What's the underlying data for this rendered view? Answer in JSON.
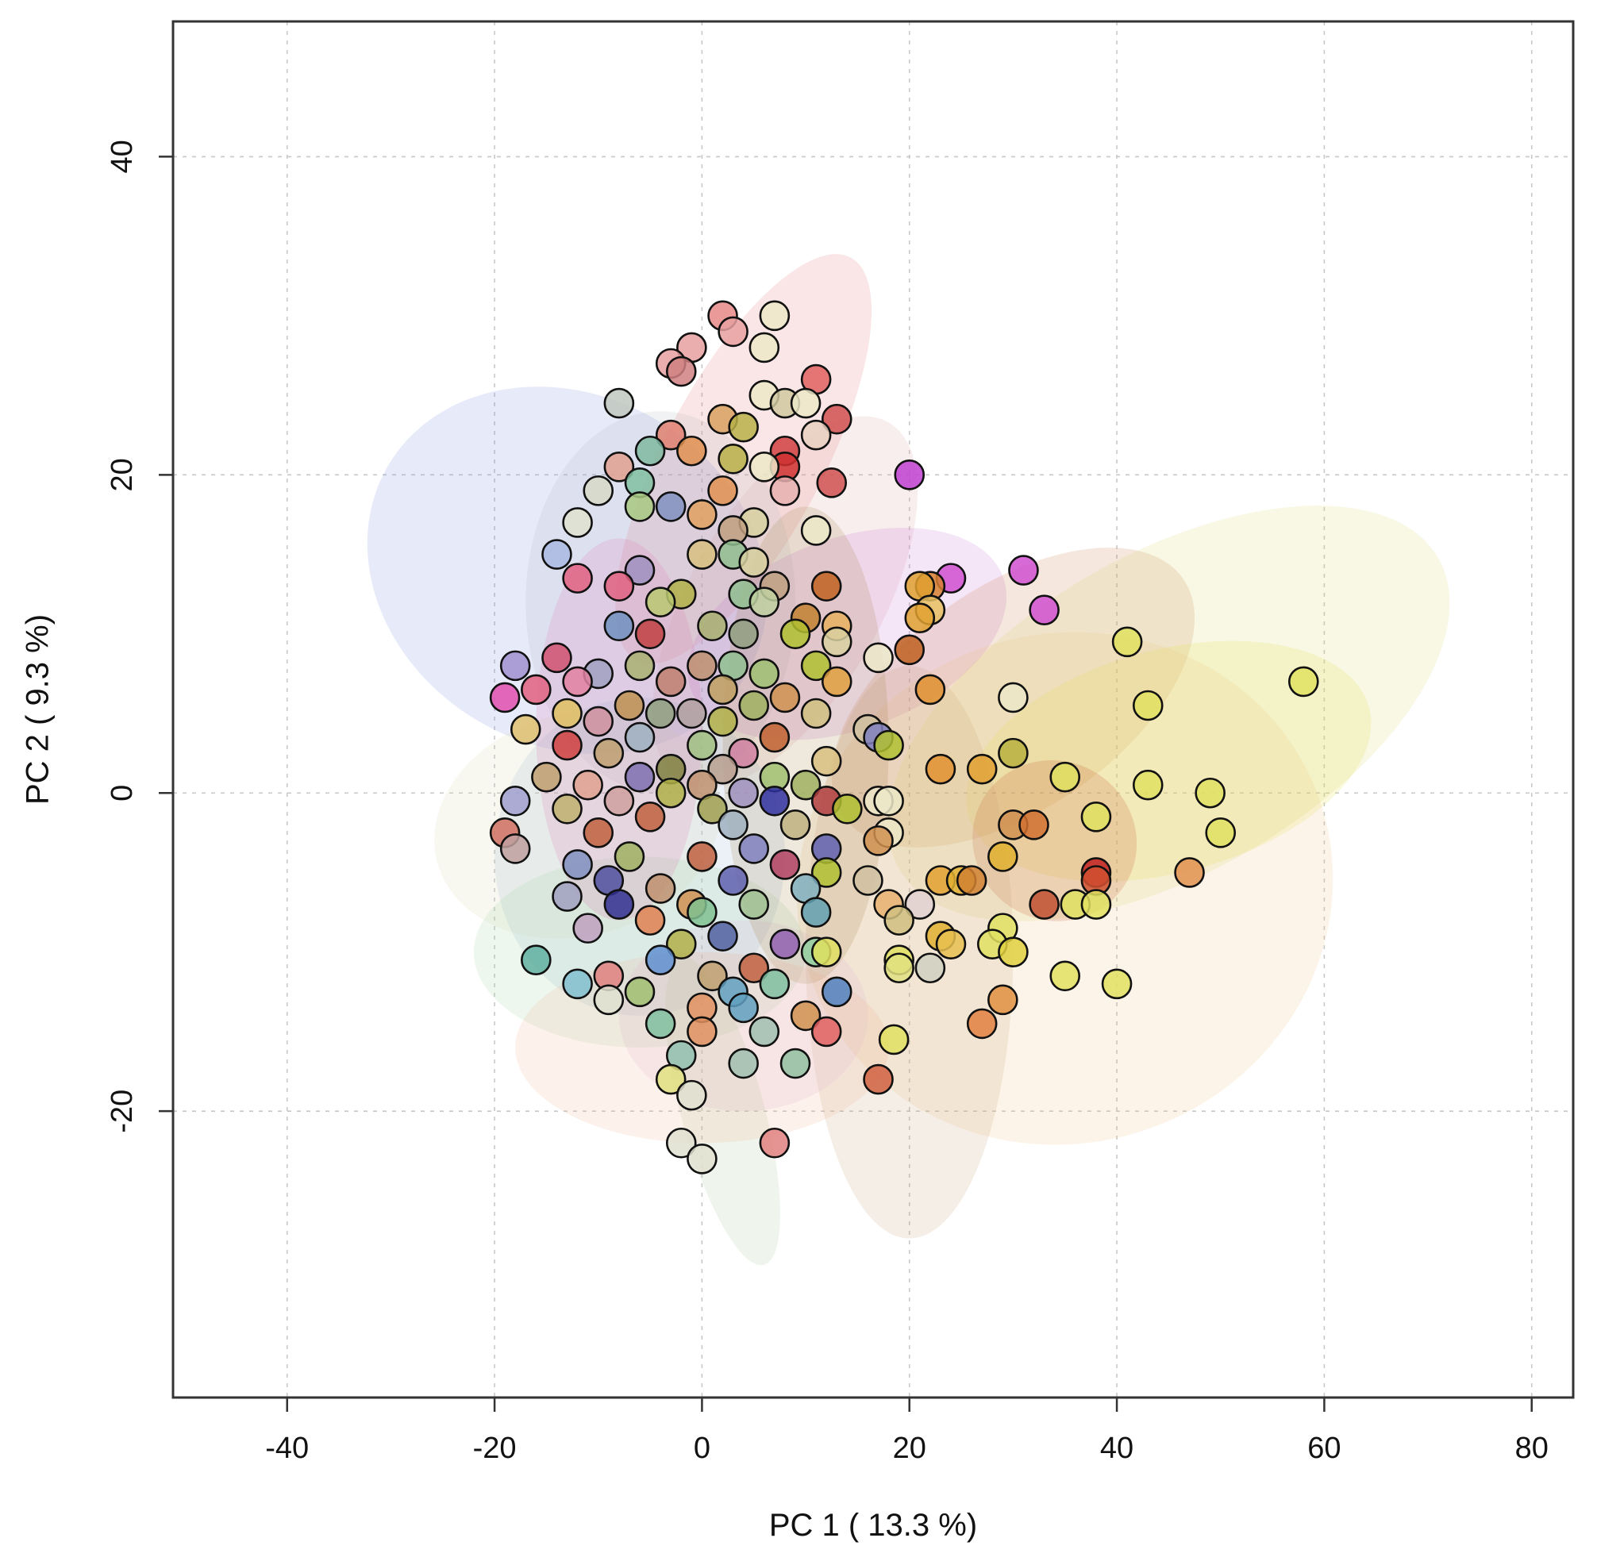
{
  "chart_data": {
    "type": "scatter",
    "title": "",
    "xlabel": "PC 1 ( 13.3 %)",
    "ylabel": "PC 2 ( 9.3 %)",
    "xlim": [
      -51,
      84
    ],
    "ylim": [
      -38,
      48.5
    ],
    "grid": true,
    "xticks": [
      -40,
      -20,
      0,
      20,
      40,
      60,
      80
    ],
    "xtick_labels": [
      "-40",
      "-20",
      "0",
      "20",
      "40",
      "60",
      "80"
    ],
    "yticks": [
      -20,
      0,
      20,
      40
    ],
    "ytick_labels": [
      "-20",
      "0",
      "20",
      "40"
    ],
    "ellipses": [
      {
        "cx": -13,
        "cy": 14,
        "rx": 20,
        "ry": 11,
        "angle": -30,
        "color": "#7b8fe0"
      },
      {
        "cx": 4,
        "cy": 21,
        "rx": 22,
        "ry": 5,
        "angle": 62,
        "color": "#e57373"
      },
      {
        "cx": 8,
        "cy": 12,
        "rx": 20,
        "ry": 6,
        "angle": 60,
        "color": "#e0a0a0"
      },
      {
        "cx": -4,
        "cy": 12,
        "rx": 13,
        "ry": 12,
        "angle": 0,
        "color": "#b0b8c0"
      },
      {
        "cx": 14,
        "cy": 10,
        "rx": 16,
        "ry": 6,
        "angle": 20,
        "color": "#c070d0"
      },
      {
        "cx": 30,
        "cy": 6,
        "rx": 20,
        "ry": 7,
        "angle": 35,
        "color": "#c87840"
      },
      {
        "cx": 45,
        "cy": 5,
        "rx": 30,
        "ry": 10,
        "angle": 30,
        "color": "#d8d870"
      },
      {
        "cx": 45,
        "cy": 2,
        "rx": 20,
        "ry": 7,
        "angle": 15,
        "color": "#e6e040"
      },
      {
        "cx": 35,
        "cy": -6,
        "rx": 26,
        "ry": 16,
        "angle": 20,
        "color": "#eec080"
      },
      {
        "cx": 34,
        "cy": -3,
        "rx": 8,
        "ry": 5,
        "angle": -30,
        "color": "#c05020"
      },
      {
        "cx": 20,
        "cy": -10,
        "rx": 10,
        "ry": 18,
        "angle": 0,
        "color": "#c8a078"
      },
      {
        "cx": -6,
        "cy": -4,
        "rx": 14,
        "ry": 10,
        "angle": 0,
        "color": "#8fb0d0"
      },
      {
        "cx": -12,
        "cy": -2,
        "rx": 14,
        "ry": 7,
        "angle": 15,
        "color": "#d8d8b0"
      },
      {
        "cx": -6,
        "cy": -10,
        "rx": 16,
        "ry": 6,
        "angle": 0,
        "color": "#a0d0a0"
      },
      {
        "cx": 4,
        "cy": -14,
        "rx": 12,
        "ry": 6,
        "angle": 0,
        "color": "#e0b0d8"
      },
      {
        "cx": 2,
        "cy": -20,
        "rx": 4,
        "ry": 10,
        "angle": 15,
        "color": "#a8c098"
      },
      {
        "cx": -8,
        "cy": 4,
        "rx": 8,
        "ry": 12,
        "angle": 0,
        "color": "#e070b0"
      },
      {
        "cx": 10,
        "cy": 3,
        "rx": 8,
        "ry": 15,
        "angle": 0,
        "color": "#a08040"
      },
      {
        "cx": 0,
        "cy": -16,
        "rx": 18,
        "ry": 6,
        "angle": 0,
        "color": "#f0b090"
      }
    ],
    "points": [
      {
        "x": 2,
        "y": 30,
        "c": "#e88888"
      },
      {
        "x": 7,
        "y": 30,
        "c": "#ece8c8"
      },
      {
        "x": 3,
        "y": 29,
        "c": "#e8a0a0"
      },
      {
        "x": -1,
        "y": 28,
        "c": "#e8a0a0"
      },
      {
        "x": -3,
        "y": 27,
        "c": "#e8a0a0"
      },
      {
        "x": 6,
        "y": 28,
        "c": "#ece8c8"
      },
      {
        "x": -2,
        "y": 26.5,
        "c": "#d08080"
      },
      {
        "x": 11,
        "y": 26,
        "c": "#e06060"
      },
      {
        "x": 6,
        "y": 25,
        "c": "#ece8c8"
      },
      {
        "x": -8,
        "y": 24.5,
        "c": "#c0c8c0"
      },
      {
        "x": 8,
        "y": 24.5,
        "c": "#d0c8a0"
      },
      {
        "x": 10,
        "y": 24.5,
        "c": "#ece8c8"
      },
      {
        "x": 13,
        "y": 23.5,
        "c": "#d05050"
      },
      {
        "x": 2,
        "y": 23.5,
        "c": "#d8a060"
      },
      {
        "x": 4,
        "y": 23,
        "c": "#b8b048"
      },
      {
        "x": 11,
        "y": 22.5,
        "c": "#e8d0c0"
      },
      {
        "x": -3,
        "y": 22.5,
        "c": "#e08070"
      },
      {
        "x": -5,
        "y": 21.5,
        "c": "#80b8a0"
      },
      {
        "x": -1,
        "y": 21.5,
        "c": "#e09050"
      },
      {
        "x": 8,
        "y": 21.5,
        "c": "#d04040"
      },
      {
        "x": 3,
        "y": 21,
        "c": "#b8b048"
      },
      {
        "x": 8,
        "y": 20.5,
        "c": "#d03030"
      },
      {
        "x": -8,
        "y": 20.5,
        "c": "#e0a090"
      },
      {
        "x": 6,
        "y": 20.5,
        "c": "#ece8c8"
      },
      {
        "x": 20,
        "y": 20,
        "c": "#c040d0"
      },
      {
        "x": -6,
        "y": 19.5,
        "c": "#80c0a0"
      },
      {
        "x": 12.5,
        "y": 19.5,
        "c": "#d05050"
      },
      {
        "x": -10,
        "y": 19,
        "c": "#d8d8c8"
      },
      {
        "x": 8,
        "y": 19,
        "c": "#e8b0b0"
      },
      {
        "x": 2,
        "y": 19,
        "c": "#e09050"
      },
      {
        "x": -6,
        "y": 18,
        "c": "#a8c880"
      },
      {
        "x": -3,
        "y": 18,
        "c": "#8090c0"
      },
      {
        "x": 0,
        "y": 17.5,
        "c": "#e0a060"
      },
      {
        "x": 5,
        "y": 17,
        "c": "#d8d0a0"
      },
      {
        "x": -12,
        "y": 17,
        "c": "#e0e0d0"
      },
      {
        "x": 3,
        "y": 16.5,
        "c": "#c0a080"
      },
      {
        "x": 11,
        "y": 16.5,
        "c": "#ece8c8"
      },
      {
        "x": 0,
        "y": 15,
        "c": "#d8c080"
      },
      {
        "x": -14,
        "y": 15,
        "c": "#a8b8e0"
      },
      {
        "x": 3,
        "y": 15,
        "c": "#90c090"
      },
      {
        "x": 5,
        "y": 14.5,
        "c": "#d8d0a0"
      },
      {
        "x": -6,
        "y": 14,
        "c": "#a090c0"
      },
      {
        "x": 31,
        "y": 14,
        "c": "#d050d0"
      },
      {
        "x": 24,
        "y": 13.5,
        "c": "#d050d0"
      },
      {
        "x": -12,
        "y": 13.5,
        "c": "#e06080"
      },
      {
        "x": 22,
        "y": 13,
        "c": "#d88030"
      },
      {
        "x": 21,
        "y": 13,
        "c": "#e0a030"
      },
      {
        "x": 12,
        "y": 13,
        "c": "#c06020"
      },
      {
        "x": 7,
        "y": 13,
        "c": "#c0a080"
      },
      {
        "x": -8,
        "y": 13,
        "c": "#e06080"
      },
      {
        "x": 4,
        "y": 12.5,
        "c": "#90c090"
      },
      {
        "x": -2,
        "y": 12.5,
        "c": "#b0b048"
      },
      {
        "x": 6,
        "y": 12,
        "c": "#c0d0a0"
      },
      {
        "x": -4,
        "y": 12,
        "c": "#b8c870"
      },
      {
        "x": 33,
        "y": 11.5,
        "c": "#d050d0"
      },
      {
        "x": 22,
        "y": 11.5,
        "c": "#e8c060"
      },
      {
        "x": 21,
        "y": 11,
        "c": "#e0a030"
      },
      {
        "x": 10,
        "y": 11,
        "c": "#c08030"
      },
      {
        "x": -8,
        "y": 10.5,
        "c": "#7090c0"
      },
      {
        "x": 1,
        "y": 10.5,
        "c": "#a8b070"
      },
      {
        "x": 13,
        "y": 10.5,
        "c": "#e8b060"
      },
      {
        "x": -5,
        "y": 10,
        "c": "#c04040"
      },
      {
        "x": 4,
        "y": 10,
        "c": "#90a080"
      },
      {
        "x": 9,
        "y": 10,
        "c": "#b0c030"
      },
      {
        "x": 41,
        "y": 9.5,
        "c": "#e0e060"
      },
      {
        "x": 13,
        "y": 9.5,
        "c": "#d8d0a0"
      },
      {
        "x": 20,
        "y": 9,
        "c": "#c06020"
      },
      {
        "x": 17,
        "y": 8.5,
        "c": "#ece8c8"
      },
      {
        "x": -14,
        "y": 8.5,
        "c": "#d05070"
      },
      {
        "x": -6,
        "y": 8,
        "c": "#a8b070"
      },
      {
        "x": 0,
        "y": 8,
        "c": "#c09070"
      },
      {
        "x": 11,
        "y": 8,
        "c": "#b0c030"
      },
      {
        "x": 3,
        "y": 8,
        "c": "#90c090"
      },
      {
        "x": -18,
        "y": 8,
        "c": "#a090d0"
      },
      {
        "x": -10,
        "y": 7.5,
        "c": "#a0a0c0"
      },
      {
        "x": 6,
        "y": 7.5,
        "c": "#a0c070"
      },
      {
        "x": 58,
        "y": 7,
        "c": "#e0e060"
      },
      {
        "x": -3,
        "y": 7,
        "c": "#c08070"
      },
      {
        "x": 13,
        "y": 7,
        "c": "#e0a040"
      },
      {
        "x": -12,
        "y": 7,
        "c": "#e080a0"
      },
      {
        "x": 2,
        "y": 6.5,
        "c": "#c0a060"
      },
      {
        "x": 22,
        "y": 6.5,
        "c": "#e09030"
      },
      {
        "x": -16,
        "y": 6.5,
        "c": "#e06080"
      },
      {
        "x": -19,
        "y": 6,
        "c": "#e050b0"
      },
      {
        "x": 8,
        "y": 6,
        "c": "#d09050"
      },
      {
        "x": 30,
        "y": 6,
        "c": "#ece8c8"
      },
      {
        "x": 43,
        "y": 5.5,
        "c": "#e0e060"
      },
      {
        "x": -7,
        "y": 5.5,
        "c": "#c09050"
      },
      {
        "x": 5,
        "y": 5.5,
        "c": "#a0b060"
      },
      {
        "x": -1,
        "y": 5,
        "c": "#b0a0a0"
      },
      {
        "x": -13,
        "y": 5,
        "c": "#e0c060"
      },
      {
        "x": 11,
        "y": 5,
        "c": "#d0c080"
      },
      {
        "x": -4,
        "y": 5,
        "c": "#90a080"
      },
      {
        "x": -10,
        "y": 4.5,
        "c": "#d090a0"
      },
      {
        "x": 2,
        "y": 4.5,
        "c": "#b0b048"
      },
      {
        "x": -17,
        "y": 4,
        "c": "#e0c070"
      },
      {
        "x": 16,
        "y": 4,
        "c": "#d0c0a0"
      },
      {
        "x": 17,
        "y": 3.5,
        "c": "#8080c0"
      },
      {
        "x": 7,
        "y": 3.5,
        "c": "#c06030"
      },
      {
        "x": -6,
        "y": 3.5,
        "c": "#a0b0c0"
      },
      {
        "x": 0,
        "y": 3,
        "c": "#a0c080"
      },
      {
        "x": 18,
        "y": 3,
        "c": "#b0c030"
      },
      {
        "x": -13,
        "y": 3,
        "c": "#d04040"
      },
      {
        "x": 4,
        "y": 2.5,
        "c": "#d080a0"
      },
      {
        "x": 30,
        "y": 2.5,
        "c": "#b8b040"
      },
      {
        "x": -9,
        "y": 2.5,
        "c": "#c0a070"
      },
      {
        "x": 12,
        "y": 2,
        "c": "#d8c080"
      },
      {
        "x": 2,
        "y": 1.5,
        "c": "#b8a090"
      },
      {
        "x": -3,
        "y": 1.5,
        "c": "#808040"
      },
      {
        "x": 27,
        "y": 1.5,
        "c": "#e0a030"
      },
      {
        "x": 23,
        "y": 1.5,
        "c": "#e09030"
      },
      {
        "x": 7,
        "y": 1,
        "c": "#a0c070"
      },
      {
        "x": -15,
        "y": 1,
        "c": "#c0a070"
      },
      {
        "x": 35,
        "y": 1,
        "c": "#e0e060"
      },
      {
        "x": -6,
        "y": 1,
        "c": "#8070b0"
      },
      {
        "x": 10,
        "y": 0.5,
        "c": "#a0b060"
      },
      {
        "x": 0,
        "y": 0.5,
        "c": "#c09070"
      },
      {
        "x": -11,
        "y": 0.5,
        "c": "#e0a090"
      },
      {
        "x": 43,
        "y": 0.5,
        "c": "#e0e060"
      },
      {
        "x": 49,
        "y": 0,
        "c": "#e0e060"
      },
      {
        "x": 4,
        "y": 0,
        "c": "#a090c0"
      },
      {
        "x": -3,
        "y": 0,
        "c": "#b0b048"
      },
      {
        "x": -18,
        "y": -0.5,
        "c": "#a0a0d0"
      },
      {
        "x": 17,
        "y": -0.5,
        "c": "#ece8c8"
      },
      {
        "x": 18,
        "y": -0.5,
        "c": "#ece8c8"
      },
      {
        "x": -8,
        "y": -0.5,
        "c": "#d0a0a0"
      },
      {
        "x": 7,
        "y": -0.5,
        "c": "#3030a0"
      },
      {
        "x": 12,
        "y": -0.5,
        "c": "#b04040"
      },
      {
        "x": 14,
        "y": -1,
        "c": "#b0c030"
      },
      {
        "x": -13,
        "y": -1,
        "c": "#c0b070"
      },
      {
        "x": 1,
        "y": -1,
        "c": "#a0a050"
      },
      {
        "x": 38,
        "y": -1.5,
        "c": "#e0e060"
      },
      {
        "x": -5,
        "y": -1.5,
        "c": "#c06040"
      },
      {
        "x": 9,
        "y": -2,
        "c": "#c0b080"
      },
      {
        "x": 30,
        "y": -2,
        "c": "#d09050"
      },
      {
        "x": 32,
        "y": -2,
        "c": "#d07030"
      },
      {
        "x": 50,
        "y": -2.5,
        "c": "#e0e060"
      },
      {
        "x": -19,
        "y": -2.5,
        "c": "#d07060"
      },
      {
        "x": 3,
        "y": -2,
        "c": "#a0b0c0"
      },
      {
        "x": -10,
        "y": -2.5,
        "c": "#c06040"
      },
      {
        "x": 18,
        "y": -2.5,
        "c": "#ece8c8"
      },
      {
        "x": 17,
        "y": -3,
        "c": "#d09050"
      },
      {
        "x": -18,
        "y": -3.5,
        "c": "#c0a0a0"
      },
      {
        "x": 5,
        "y": -3.5,
        "c": "#8080c0"
      },
      {
        "x": 12,
        "y": -3.5,
        "c": "#6060b0"
      },
      {
        "x": 29,
        "y": -4,
        "c": "#e0b030"
      },
      {
        "x": -7,
        "y": -4,
        "c": "#a0b060"
      },
      {
        "x": 0,
        "y": -4,
        "c": "#c06040"
      },
      {
        "x": 8,
        "y": -4.5,
        "c": "#b04060"
      },
      {
        "x": -12,
        "y": -4.5,
        "c": "#8090c0"
      },
      {
        "x": 38,
        "y": -5,
        "c": "#c02020"
      },
      {
        "x": 38,
        "y": -5.5,
        "c": "#d05030"
      },
      {
        "x": 47,
        "y": -5,
        "c": "#e09050"
      },
      {
        "x": 12,
        "y": -5,
        "c": "#b0c030"
      },
      {
        "x": 23,
        "y": -5.5,
        "c": "#e0a030"
      },
      {
        "x": 25,
        "y": -5.5,
        "c": "#e0b030"
      },
      {
        "x": 26,
        "y": -5.5,
        "c": "#d08030"
      },
      {
        "x": 3,
        "y": -5.5,
        "c": "#6060b0"
      },
      {
        "x": -9,
        "y": -5.5,
        "c": "#5050a0"
      },
      {
        "x": 16,
        "y": -5.5,
        "c": "#d0c0a0"
      },
      {
        "x": -4,
        "y": -6,
        "c": "#c09070"
      },
      {
        "x": 10,
        "y": -6,
        "c": "#80b0c0"
      },
      {
        "x": 36,
        "y": -7,
        "c": "#e0e060"
      },
      {
        "x": 38,
        "y": -7,
        "c": "#e0e060"
      },
      {
        "x": 33,
        "y": -7,
        "c": "#c05030"
      },
      {
        "x": -13,
        "y": -6.5,
        "c": "#a0a0c0"
      },
      {
        "x": -1,
        "y": -7,
        "c": "#d09050"
      },
      {
        "x": 21,
        "y": -7,
        "c": "#e0d0d0"
      },
      {
        "x": 18,
        "y": -7,
        "c": "#e8b070"
      },
      {
        "x": -8,
        "y": -7,
        "c": "#303090"
      },
      {
        "x": 5,
        "y": -7,
        "c": "#a0c090"
      },
      {
        "x": 11,
        "y": -7.5,
        "c": "#60a0b0"
      },
      {
        "x": 0,
        "y": -7.5,
        "c": "#80c090"
      },
      {
        "x": 19,
        "y": -8,
        "c": "#d0c080"
      },
      {
        "x": -5,
        "y": -8,
        "c": "#e08050"
      },
      {
        "x": 29,
        "y": -8.5,
        "c": "#e0e060"
      },
      {
        "x": -11,
        "y": -8.5,
        "c": "#c0a0c0"
      },
      {
        "x": 2,
        "y": -9,
        "c": "#5060a0"
      },
      {
        "x": 23,
        "y": -9,
        "c": "#e0b030"
      },
      {
        "x": 24,
        "y": -9.5,
        "c": "#e8c050"
      },
      {
        "x": 28,
        "y": -9.5,
        "c": "#e0e060"
      },
      {
        "x": -2,
        "y": -9.5,
        "c": "#b0b048"
      },
      {
        "x": 8,
        "y": -9.5,
        "c": "#9060b0"
      },
      {
        "x": 30,
        "y": -10,
        "c": "#e0d040"
      },
      {
        "x": -16,
        "y": -10.5,
        "c": "#60b0a0"
      },
      {
        "x": 11,
        "y": -10,
        "c": "#90d0a0"
      },
      {
        "x": 12,
        "y": -10,
        "c": "#e0e060"
      },
      {
        "x": -4,
        "y": -10.5,
        "c": "#6090d0"
      },
      {
        "x": 19,
        "y": -10.5,
        "c": "#e0e060"
      },
      {
        "x": 5,
        "y": -11,
        "c": "#c06040"
      },
      {
        "x": 22,
        "y": -11,
        "c": "#d0d0c0"
      },
      {
        "x": 19,
        "y": -11,
        "c": "#e0e080"
      },
      {
        "x": 35,
        "y": -11.5,
        "c": "#e0e060"
      },
      {
        "x": 40,
        "y": -12,
        "c": "#e0e060"
      },
      {
        "x": -9,
        "y": -11.5,
        "c": "#e08080"
      },
      {
        "x": 1,
        "y": -11.5,
        "c": "#c0a070"
      },
      {
        "x": -12,
        "y": -12,
        "c": "#80c0d0"
      },
      {
        "x": 7,
        "y": -12,
        "c": "#80c0a0"
      },
      {
        "x": 3,
        "y": -12.5,
        "c": "#60a0c0"
      },
      {
        "x": -6,
        "y": -12.5,
        "c": "#a0c070"
      },
      {
        "x": 13,
        "y": -12.5,
        "c": "#5080c0"
      },
      {
        "x": -9,
        "y": -13,
        "c": "#e0e0d0"
      },
      {
        "x": 29,
        "y": -13,
        "c": "#e09040"
      },
      {
        "x": 0,
        "y": -13.5,
        "c": "#e09060"
      },
      {
        "x": 4,
        "y": -13.5,
        "c": "#60a0c0"
      },
      {
        "x": 10,
        "y": -14,
        "c": "#d09050"
      },
      {
        "x": 27,
        "y": -14.5,
        "c": "#e08040"
      },
      {
        "x": -4,
        "y": -14.5,
        "c": "#80c0a0"
      },
      {
        "x": 12,
        "y": -15,
        "c": "#e06060"
      },
      {
        "x": 0,
        "y": -15,
        "c": "#e09060"
      },
      {
        "x": 18.5,
        "y": -15.5,
        "c": "#e0e060"
      },
      {
        "x": 6,
        "y": -15,
        "c": "#a0c0b0"
      },
      {
        "x": -2,
        "y": -16.5,
        "c": "#90c0b0"
      },
      {
        "x": 4,
        "y": -17,
        "c": "#a0c0b0"
      },
      {
        "x": 9,
        "y": -17,
        "c": "#90c0a0"
      },
      {
        "x": -3,
        "y": -18,
        "c": "#e0e080"
      },
      {
        "x": 17,
        "y": -18,
        "c": "#d06040"
      },
      {
        "x": -1,
        "y": -19,
        "c": "#e0e0d0"
      },
      {
        "x": -2,
        "y": -22,
        "c": "#e0e0d0"
      },
      {
        "x": 7,
        "y": -22,
        "c": "#e08080"
      },
      {
        "x": 0,
        "y": -23,
        "c": "#e0e0d0"
      }
    ]
  }
}
